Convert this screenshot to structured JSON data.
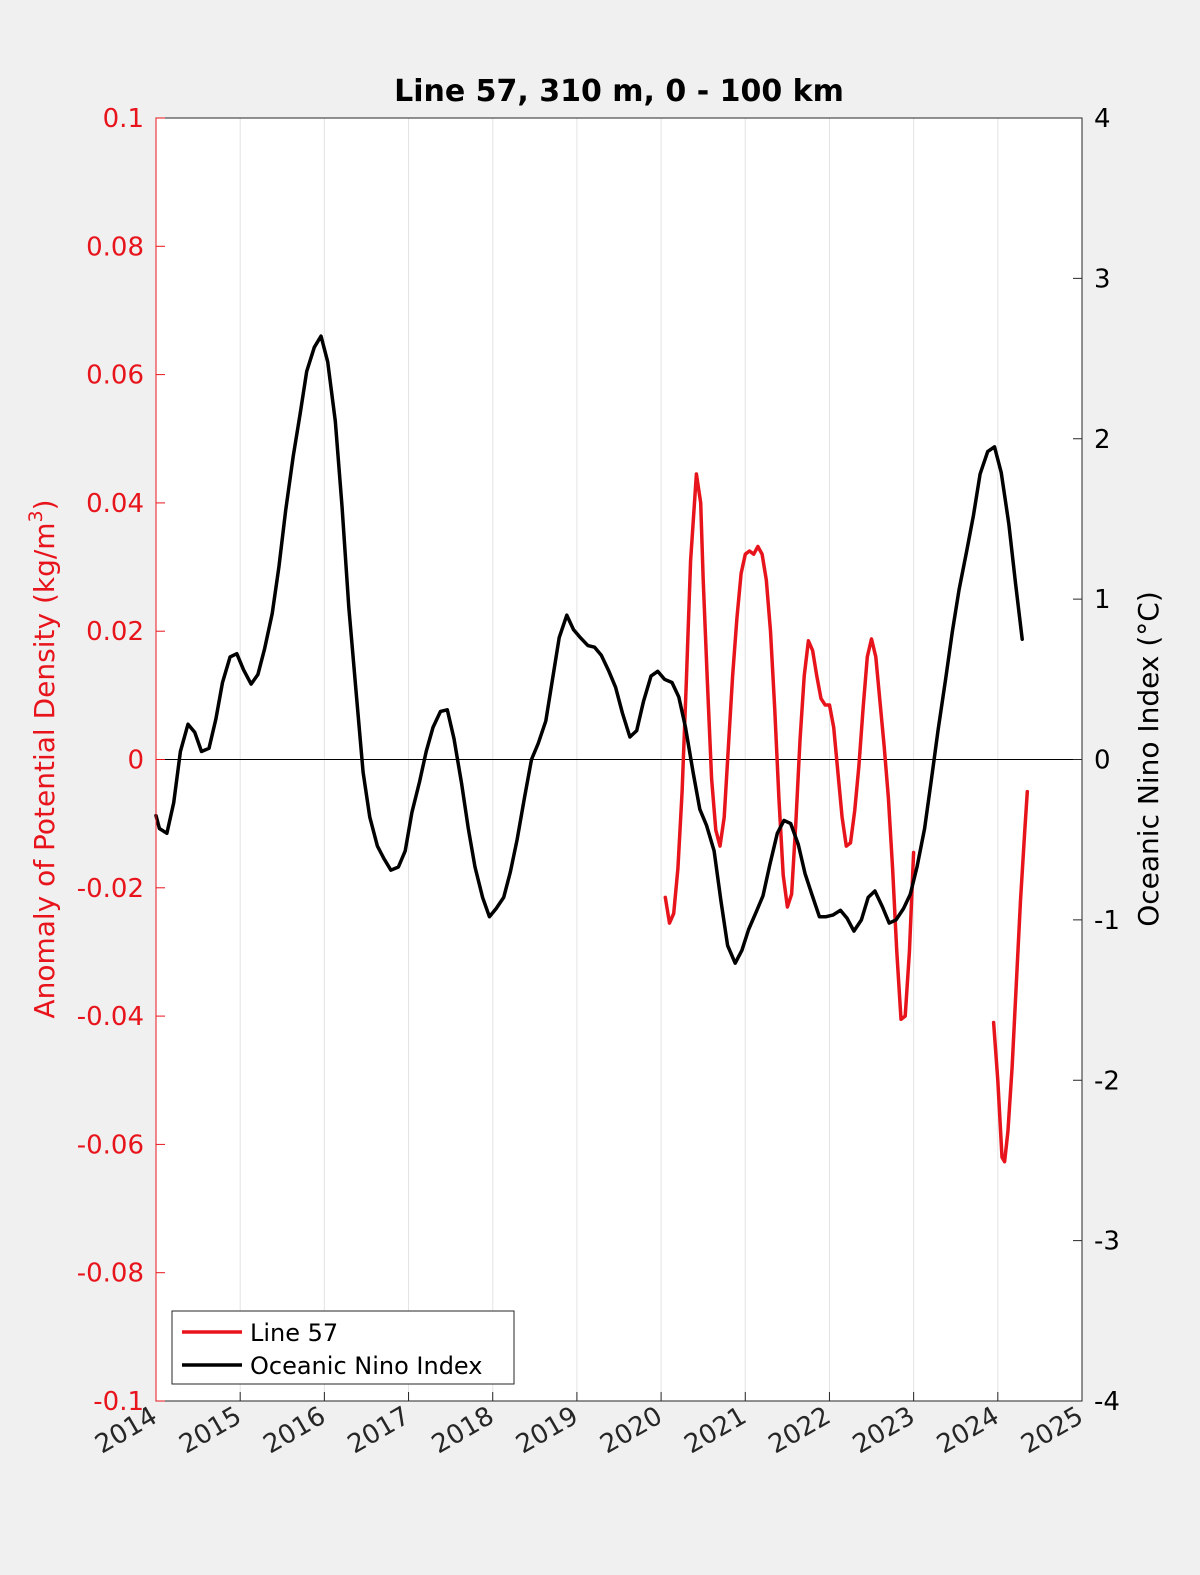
{
  "chart_data": {
    "type": "line",
    "title": "Line 57, 310 m, 0 - 100 km",
    "xlabel": "",
    "ylabel_left": "Anomaly of Potential Density (kg/m",
    "ylabel_left_superscript": "3",
    "ylabel_left_close": ")",
    "ylabel_right": "Oceanic Nino Index (°C)",
    "xlim": [
      2014,
      2025
    ],
    "ylim_left": [
      -0.1,
      0.1
    ],
    "ylim_right": [
      -4,
      4
    ],
    "x_ticks": [
      "2014",
      "2015",
      "2016",
      "2017",
      "2018",
      "2019",
      "2020",
      "2021",
      "2022",
      "2023",
      "2024",
      "2025"
    ],
    "y_left_ticks": [
      "0.1",
      "0.08",
      "0.06",
      "0.04",
      "0.02",
      "0",
      "-0.02",
      "-0.04",
      "-0.06",
      "-0.08",
      "-0.1"
    ],
    "y_right_ticks": [
      "4",
      "3",
      "2",
      "1",
      "0",
      "-1",
      "-2",
      "-3",
      "-4"
    ],
    "grid": "vertical",
    "legend_position": "bottom-left",
    "colors": {
      "line57": "#e8141c",
      "oni": "#000000",
      "axis_left": "#e8141c",
      "axis_right": "#000000"
    },
    "series": [
      {
        "name": "Line 57",
        "axis": "left",
        "color": "#e8141c",
        "segments": [
          [
            [
              2020.05,
              -0.0215
            ],
            [
              2020.1,
              -0.0255
            ],
            [
              2020.15,
              -0.024
            ],
            [
              2020.2,
              -0.017
            ],
            [
              2020.25,
              -0.005
            ],
            [
              2020.3,
              0.012
            ],
            [
              2020.35,
              0.031
            ],
            [
              2020.42,
              0.0445
            ],
            [
              2020.47,
              0.04
            ],
            [
              2020.5,
              0.028
            ],
            [
              2020.55,
              0.012
            ],
            [
              2020.6,
              -0.003
            ],
            [
              2020.65,
              -0.011
            ],
            [
              2020.7,
              -0.0135
            ],
            [
              2020.75,
              -0.009
            ],
            [
              2020.8,
              0.002
            ],
            [
              2020.85,
              0.013
            ],
            [
              2020.9,
              0.022
            ],
            [
              2020.95,
              0.029
            ],
            [
              2021.0,
              0.032
            ],
            [
              2021.05,
              0.0325
            ],
            [
              2021.1,
              0.032
            ],
            [
              2021.15,
              0.0332
            ],
            [
              2021.2,
              0.032
            ],
            [
              2021.25,
              0.028
            ],
            [
              2021.3,
              0.02
            ],
            [
              2021.35,
              0.008
            ],
            [
              2021.4,
              -0.006
            ],
            [
              2021.45,
              -0.018
            ],
            [
              2021.5,
              -0.023
            ],
            [
              2021.55,
              -0.021
            ],
            [
              2021.6,
              -0.01
            ],
            [
              2021.65,
              0.003
            ],
            [
              2021.7,
              0.013
            ],
            [
              2021.75,
              0.0185
            ],
            [
              2021.8,
              0.017
            ],
            [
              2021.85,
              0.013
            ],
            [
              2021.9,
              0.0095
            ],
            [
              2021.95,
              0.0085
            ],
            [
              2022.0,
              0.0085
            ],
            [
              2022.05,
              0.005
            ],
            [
              2022.1,
              -0.002
            ],
            [
              2022.15,
              -0.009
            ],
            [
              2022.2,
              -0.0135
            ],
            [
              2022.25,
              -0.013
            ],
            [
              2022.3,
              -0.008
            ],
            [
              2022.35,
              -0.001
            ],
            [
              2022.4,
              0.008
            ],
            [
              2022.45,
              0.016
            ],
            [
              2022.5,
              0.0188
            ],
            [
              2022.55,
              0.016
            ],
            [
              2022.6,
              0.009
            ],
            [
              2022.65,
              0.002
            ],
            [
              2022.7,
              -0.006
            ],
            [
              2022.75,
              -0.017
            ],
            [
              2022.8,
              -0.03
            ],
            [
              2022.85,
              -0.0405
            ],
            [
              2022.9,
              -0.04
            ],
            [
              2022.95,
              -0.03
            ],
            [
              2023.0,
              -0.0145
            ]
          ],
          [
            [
              2023.95,
              -0.041
            ],
            [
              2024.0,
              -0.05
            ],
            [
              2024.05,
              -0.062
            ],
            [
              2024.08,
              -0.0627
            ],
            [
              2024.12,
              -0.058
            ],
            [
              2024.17,
              -0.048
            ],
            [
              2024.22,
              -0.035
            ],
            [
              2024.27,
              -0.022
            ],
            [
              2024.32,
              -0.011
            ],
            [
              2024.35,
              -0.005
            ]
          ]
        ]
      },
      {
        "name": "Oceanic Nino Index",
        "axis": "right",
        "color": "#000000",
        "segments": [
          [
            [
              2014.0,
              -0.35
            ],
            [
              2014.04,
              -0.43
            ],
            [
              2014.13,
              -0.46
            ],
            [
              2014.21,
              -0.27
            ],
            [
              2014.29,
              0.05
            ],
            [
              2014.38,
              0.22
            ],
            [
              2014.46,
              0.17
            ],
            [
              2014.54,
              0.05
            ],
            [
              2014.63,
              0.07
            ],
            [
              2014.71,
              0.25
            ],
            [
              2014.79,
              0.48
            ],
            [
              2014.88,
              0.64
            ],
            [
              2014.96,
              0.66
            ],
            [
              2015.04,
              0.56
            ],
            [
              2015.13,
              0.47
            ],
            [
              2015.21,
              0.53
            ],
            [
              2015.29,
              0.69
            ],
            [
              2015.38,
              0.91
            ],
            [
              2015.46,
              1.2
            ],
            [
              2015.54,
              1.55
            ],
            [
              2015.63,
              1.89
            ],
            [
              2015.71,
              2.15
            ],
            [
              2015.79,
              2.42
            ],
            [
              2015.88,
              2.57
            ],
            [
              2015.96,
              2.64
            ],
            [
              2016.04,
              2.48
            ],
            [
              2016.13,
              2.11
            ],
            [
              2016.21,
              1.58
            ],
            [
              2016.29,
              0.95
            ],
            [
              2016.38,
              0.4
            ],
            [
              2016.46,
              -0.08
            ],
            [
              2016.54,
              -0.36
            ],
            [
              2016.63,
              -0.54
            ],
            [
              2016.71,
              -0.62
            ],
            [
              2016.79,
              -0.69
            ],
            [
              2016.88,
              -0.67
            ],
            [
              2016.96,
              -0.57
            ],
            [
              2017.04,
              -0.33
            ],
            [
              2017.13,
              -0.14
            ],
            [
              2017.21,
              0.05
            ],
            [
              2017.29,
              0.2
            ],
            [
              2017.38,
              0.3
            ],
            [
              2017.46,
              0.31
            ],
            [
              2017.54,
              0.13
            ],
            [
              2017.63,
              -0.15
            ],
            [
              2017.71,
              -0.43
            ],
            [
              2017.79,
              -0.67
            ],
            [
              2017.88,
              -0.86
            ],
            [
              2017.96,
              -0.98
            ],
            [
              2018.04,
              -0.93
            ],
            [
              2018.13,
              -0.86
            ],
            [
              2018.21,
              -0.7
            ],
            [
              2018.29,
              -0.5
            ],
            [
              2018.38,
              -0.23
            ],
            [
              2018.46,
              0.0
            ],
            [
              2018.54,
              0.1
            ],
            [
              2018.63,
              0.24
            ],
            [
              2018.71,
              0.5
            ],
            [
              2018.79,
              0.76
            ],
            [
              2018.88,
              0.9
            ],
            [
              2018.96,
              0.81
            ],
            [
              2019.04,
              0.76
            ],
            [
              2019.13,
              0.71
            ],
            [
              2019.21,
              0.7
            ],
            [
              2019.29,
              0.65
            ],
            [
              2019.38,
              0.55
            ],
            [
              2019.46,
              0.45
            ],
            [
              2019.54,
              0.29
            ],
            [
              2019.63,
              0.14
            ],
            [
              2019.71,
              0.18
            ],
            [
              2019.79,
              0.36
            ],
            [
              2019.88,
              0.52
            ],
            [
              2019.96,
              0.55
            ],
            [
              2020.04,
              0.5
            ],
            [
              2020.13,
              0.48
            ],
            [
              2020.21,
              0.39
            ],
            [
              2020.29,
              0.2
            ],
            [
              2020.38,
              -0.08
            ],
            [
              2020.46,
              -0.31
            ],
            [
              2020.54,
              -0.41
            ],
            [
              2020.63,
              -0.57
            ],
            [
              2020.71,
              -0.88
            ],
            [
              2020.79,
              -1.16
            ],
            [
              2020.88,
              -1.27
            ],
            [
              2020.96,
              -1.19
            ],
            [
              2021.04,
              -1.06
            ],
            [
              2021.13,
              -0.95
            ],
            [
              2021.21,
              -0.85
            ],
            [
              2021.29,
              -0.66
            ],
            [
              2021.38,
              -0.46
            ],
            [
              2021.46,
              -0.38
            ],
            [
              2021.54,
              -0.4
            ],
            [
              2021.63,
              -0.53
            ],
            [
              2021.71,
              -0.71
            ],
            [
              2021.79,
              -0.84
            ],
            [
              2021.88,
              -0.98
            ],
            [
              2021.96,
              -0.98
            ],
            [
              2022.04,
              -0.97
            ],
            [
              2022.13,
              -0.94
            ],
            [
              2022.21,
              -0.99
            ],
            [
              2022.29,
              -1.07
            ],
            [
              2022.38,
              -1.0
            ],
            [
              2022.46,
              -0.86
            ],
            [
              2022.54,
              -0.82
            ],
            [
              2022.63,
              -0.92
            ],
            [
              2022.71,
              -1.02
            ],
            [
              2022.79,
              -1.0
            ],
            [
              2022.88,
              -0.93
            ],
            [
              2022.96,
              -0.84
            ],
            [
              2023.04,
              -0.67
            ],
            [
              2023.13,
              -0.43
            ],
            [
              2023.21,
              -0.13
            ],
            [
              2023.29,
              0.18
            ],
            [
              2023.38,
              0.5
            ],
            [
              2023.46,
              0.8
            ],
            [
              2023.54,
              1.06
            ],
            [
              2023.63,
              1.3
            ],
            [
              2023.71,
              1.52
            ],
            [
              2023.79,
              1.78
            ],
            [
              2023.88,
              1.92
            ],
            [
              2023.96,
              1.95
            ],
            [
              2024.04,
              1.79
            ],
            [
              2024.13,
              1.47
            ],
            [
              2024.21,
              1.1
            ],
            [
              2024.29,
              0.75
            ]
          ]
        ]
      }
    ]
  }
}
